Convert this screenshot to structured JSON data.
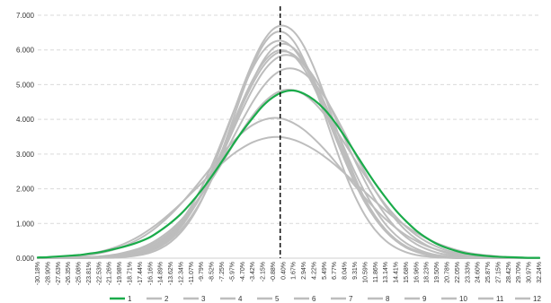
{
  "chart_data": {
    "type": "line",
    "title": "",
    "xlabel": "",
    "ylabel": "",
    "ylim": [
      0,
      7
    ],
    "yticks": [
      "0.000",
      "1.000",
      "2.000",
      "3.000",
      "4.000",
      "5.000",
      "6.000",
      "7.000"
    ],
    "categories": [
      "-30.18%",
      "-28.90%",
      "-27.63%",
      "-26.35%",
      "-25.08%",
      "-23.81%",
      "-22.53%",
      "-21.26%",
      "-19.98%",
      "-18.71%",
      "-17.44%",
      "-16.16%",
      "-14.89%",
      "-13.62%",
      "-12.34%",
      "-11.07%",
      "-9.79%",
      "-8.52%",
      "-7.25%",
      "-5.97%",
      "-4.70%",
      "-3.42%",
      "-2.15%",
      "-0.88%",
      "0.40%",
      "1.67%",
      "2.94%",
      "4.22%",
      "5.49%",
      "6.77%",
      "8.04%",
      "9.31%",
      "10.59%",
      "11.86%",
      "13.14%",
      "14.41%",
      "15.68%",
      "16.96%",
      "18.23%",
      "19.50%",
      "20.78%",
      "22.05%",
      "23.33%",
      "24.60%",
      "25.87%",
      "27.15%",
      "28.42%",
      "29.70%",
      "30.97%",
      "32.24%"
    ],
    "vline_position": "0.00%",
    "grid": "horizontal dashed",
    "legend": "bottom",
    "highlight_color": "#1aab4a",
    "other_color": "#bdbdbd",
    "series": [
      {
        "name": "1",
        "color": "#1aab4a",
        "values": [
          0.02,
          0.03,
          0.05,
          0.07,
          0.09,
          0.13,
          0.17,
          0.23,
          0.3,
          0.38,
          0.48,
          0.61,
          0.8,
          1.02,
          1.28,
          1.6,
          1.96,
          2.36,
          2.79,
          3.24,
          3.66,
          4.04,
          4.39,
          4.64,
          4.79,
          4.83,
          4.74,
          4.56,
          4.29,
          3.93,
          3.5,
          3.04,
          2.58,
          2.14,
          1.74,
          1.37,
          1.06,
          0.79,
          0.58,
          0.41,
          0.29,
          0.2,
          0.13,
          0.09,
          0.06,
          0.04,
          0.03,
          0.02,
          0.01,
          0.01
        ]
      },
      {
        "name": "2",
        "color": "#bdbdbd",
        "values": [
          0.0,
          0.0,
          0.0,
          0.0,
          0.01,
          0.01,
          0.02,
          0.04,
          0.07,
          0.12,
          0.2,
          0.32,
          0.49,
          0.74,
          1.07,
          1.5,
          2.04,
          2.67,
          3.38,
          4.13,
          4.85,
          5.48,
          5.96,
          6.22,
          6.25,
          6.03,
          5.6,
          5.0,
          4.3,
          3.56,
          2.83,
          2.16,
          1.59,
          1.13,
          0.77,
          0.5,
          0.32,
          0.19,
          0.11,
          0.06,
          0.03,
          0.02,
          0.01,
          0.0,
          0.0,
          0.0,
          0.0,
          0.0,
          0.0,
          0.0
        ]
      },
      {
        "name": "3",
        "color": "#bdbdbd",
        "values": [
          0.0,
          0.0,
          0.0,
          0.0,
          0.0,
          0.01,
          0.01,
          0.02,
          0.04,
          0.07,
          0.13,
          0.22,
          0.37,
          0.59,
          0.9,
          1.33,
          1.87,
          2.53,
          3.29,
          4.1,
          4.91,
          5.64,
          6.23,
          6.6,
          6.7,
          6.53,
          6.11,
          5.48,
          4.71,
          3.88,
          3.06,
          2.32,
          1.68,
          1.17,
          0.78,
          0.5,
          0.3,
          0.18,
          0.1,
          0.05,
          0.03,
          0.01,
          0.01,
          0.0,
          0.0,
          0.0,
          0.0,
          0.0,
          0.0,
          0.0
        ]
      },
      {
        "name": "4",
        "color": "#bdbdbd",
        "values": [
          0.0,
          0.0,
          0.0,
          0.0,
          0.01,
          0.01,
          0.02,
          0.04,
          0.07,
          0.12,
          0.19,
          0.3,
          0.46,
          0.68,
          0.97,
          1.35,
          1.81,
          2.36,
          2.98,
          3.63,
          4.28,
          4.87,
          5.36,
          5.69,
          5.85,
          5.81,
          5.59,
          5.21,
          4.7,
          4.09,
          3.44,
          2.8,
          2.2,
          1.67,
          1.23,
          0.87,
          0.6,
          0.4,
          0.26,
          0.16,
          0.1,
          0.06,
          0.03,
          0.02,
          0.01,
          0.01,
          0.0,
          0.0,
          0.0,
          0.0
        ]
      },
      {
        "name": "5",
        "color": "#bdbdbd",
        "values": [
          0.01,
          0.02,
          0.03,
          0.05,
          0.08,
          0.12,
          0.18,
          0.26,
          0.36,
          0.49,
          0.65,
          0.84,
          1.06,
          1.31,
          1.58,
          1.87,
          2.16,
          2.46,
          2.73,
          2.98,
          3.18,
          3.34,
          3.44,
          3.49,
          3.48,
          3.41,
          3.29,
          3.13,
          2.93,
          2.7,
          2.44,
          2.17,
          1.9,
          1.63,
          1.37,
          1.13,
          0.92,
          0.73,
          0.57,
          0.43,
          0.32,
          0.23,
          0.16,
          0.11,
          0.08,
          0.05,
          0.03,
          0.02,
          0.01,
          0.01
        ]
      },
      {
        "name": "6",
        "color": "#bdbdbd",
        "values": [
          0.0,
          0.0,
          0.0,
          0.01,
          0.01,
          0.02,
          0.04,
          0.06,
          0.1,
          0.16,
          0.25,
          0.37,
          0.54,
          0.76,
          1.04,
          1.4,
          1.82,
          2.31,
          2.85,
          3.42,
          3.98,
          4.5,
          4.94,
          5.26,
          5.44,
          5.46,
          5.33,
          5.05,
          4.65,
          4.15,
          3.59,
          3.01,
          2.45,
          1.93,
          1.48,
          1.1,
          0.79,
          0.55,
          0.37,
          0.24,
          0.15,
          0.09,
          0.06,
          0.03,
          0.02,
          0.01,
          0.01,
          0.0,
          0.0,
          0.0
        ]
      },
      {
        "name": "7",
        "color": "#bdbdbd",
        "values": [
          0.0,
          0.0,
          0.0,
          0.0,
          0.01,
          0.01,
          0.02,
          0.04,
          0.07,
          0.12,
          0.19,
          0.3,
          0.46,
          0.69,
          0.99,
          1.38,
          1.86,
          2.43,
          3.07,
          3.75,
          4.42,
          5.03,
          5.52,
          5.84,
          5.96,
          5.86,
          5.56,
          5.09,
          4.49,
          3.82,
          3.13,
          2.47,
          1.88,
          1.38,
          0.97,
          0.66,
          0.43,
          0.27,
          0.16,
          0.09,
          0.05,
          0.03,
          0.01,
          0.01,
          0.0,
          0.0,
          0.0,
          0.0,
          0.0,
          0.0
        ]
      },
      {
        "name": "8",
        "color": "#bdbdbd",
        "values": [
          0.0,
          0.0,
          0.0,
          0.01,
          0.02,
          0.03,
          0.05,
          0.08,
          0.13,
          0.2,
          0.29,
          0.42,
          0.6,
          0.82,
          1.1,
          1.44,
          1.83,
          2.27,
          2.74,
          3.22,
          3.69,
          4.11,
          4.46,
          4.71,
          4.84,
          4.84,
          4.72,
          4.48,
          4.15,
          3.75,
          3.3,
          2.83,
          2.37,
          1.93,
          1.53,
          1.19,
          0.9,
          0.66,
          0.47,
          0.33,
          0.22,
          0.15,
          0.09,
          0.06,
          0.04,
          0.02,
          0.01,
          0.01,
          0.0,
          0.0
        ]
      },
      {
        "name": "9",
        "color": "#bdbdbd",
        "values": [
          0.0,
          0.0,
          0.0,
          0.0,
          0.0,
          0.0,
          0.01,
          0.01,
          0.02,
          0.05,
          0.09,
          0.16,
          0.28,
          0.47,
          0.75,
          1.14,
          1.66,
          2.32,
          3.09,
          3.93,
          4.78,
          5.54,
          6.13,
          6.47,
          6.51,
          6.25,
          5.72,
          4.99,
          4.14,
          3.28,
          2.47,
          1.78,
          1.22,
          0.8,
          0.5,
          0.3,
          0.17,
          0.09,
          0.05,
          0.02,
          0.01,
          0.0,
          0.0,
          0.0,
          0.0,
          0.0,
          0.0,
          0.0,
          0.0,
          0.0
        ]
      },
      {
        "name": "10",
        "color": "#bdbdbd",
        "values": [
          0.01,
          0.01,
          0.02,
          0.04,
          0.06,
          0.09,
          0.14,
          0.21,
          0.3,
          0.42,
          0.57,
          0.76,
          0.99,
          1.26,
          1.57,
          1.91,
          2.27,
          2.64,
          3.0,
          3.33,
          3.62,
          3.84,
          3.98,
          4.04,
          4.01,
          3.89,
          3.7,
          3.44,
          3.14,
          2.8,
          2.44,
          2.08,
          1.73,
          1.41,
          1.12,
          0.87,
          0.66,
          0.49,
          0.35,
          0.25,
          0.17,
          0.11,
          0.07,
          0.05,
          0.03,
          0.02,
          0.01,
          0.01,
          0.0,
          0.0
        ]
      },
      {
        "name": "11",
        "color": "#bdbdbd",
        "values": [
          0.0,
          0.0,
          0.0,
          0.0,
          0.0,
          0.01,
          0.02,
          0.03,
          0.05,
          0.09,
          0.16,
          0.26,
          0.41,
          0.63,
          0.93,
          1.33,
          1.83,
          2.43,
          3.1,
          3.82,
          4.52,
          5.14,
          5.62,
          5.92,
          5.99,
          5.83,
          5.46,
          4.92,
          4.25,
          3.53,
          2.82,
          2.16,
          1.59,
          1.13,
          0.77,
          0.5,
          0.31,
          0.19,
          0.11,
          0.06,
          0.03,
          0.02,
          0.01,
          0.0,
          0.0,
          0.0,
          0.0,
          0.0,
          0.0,
          0.0
        ]
      },
      {
        "name": "12",
        "color": "#bdbdbd",
        "values": [
          0.0,
          0.0,
          0.0,
          0.0,
          0.0,
          0.0,
          0.01,
          0.02,
          0.04,
          0.07,
          0.12,
          0.21,
          0.34,
          0.54,
          0.82,
          1.2,
          1.68,
          2.27,
          2.95,
          3.68,
          4.43,
          5.12,
          5.68,
          6.05,
          6.18,
          6.05,
          5.68,
          5.12,
          4.43,
          3.68,
          2.95,
          2.27,
          1.68,
          1.2,
          0.82,
          0.54,
          0.34,
          0.21,
          0.12,
          0.07,
          0.04,
          0.02,
          0.01,
          0.0,
          0.0,
          0.0,
          0.0,
          0.0,
          0.0,
          0.0
        ]
      }
    ]
  }
}
